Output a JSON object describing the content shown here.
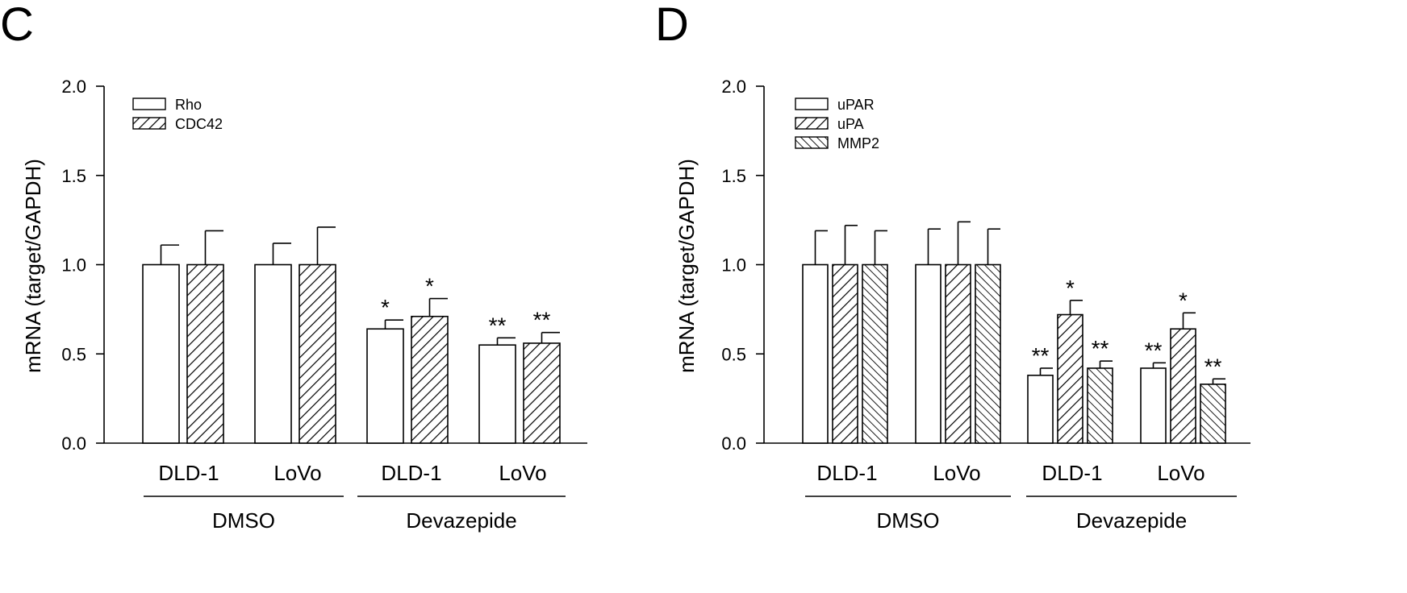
{
  "chart_data": [
    {
      "panel_letter": "C",
      "type": "bar",
      "ylabel": "mRNA (target/GAPDH)",
      "ylim": [
        0,
        2.0
      ],
      "yticks": [
        "0.0",
        "0.5",
        "1.0",
        "1.5",
        "2.0"
      ],
      "categories": [
        "DLD-1",
        "LoVo",
        "DLD-1",
        "LoVo"
      ],
      "groups": [
        {
          "label": "DMSO",
          "categories": [
            0,
            1
          ]
        },
        {
          "label": "Devazepide",
          "categories": [
            2,
            3
          ]
        }
      ],
      "legend_position": "top-left",
      "series": [
        {
          "name": "Rho",
          "pattern": "open",
          "values": [
            1.0,
            1.0,
            0.64,
            0.55
          ],
          "errors": [
            0.11,
            0.12,
            0.05,
            0.04
          ],
          "significance": [
            "",
            "",
            "*",
            "**"
          ]
        },
        {
          "name": "CDC42",
          "pattern": "hatch-forward",
          "values": [
            1.0,
            1.0,
            0.71,
            0.56
          ],
          "errors": [
            0.19,
            0.21,
            0.1,
            0.06
          ],
          "significance": [
            "",
            "",
            "*",
            "**"
          ]
        }
      ]
    },
    {
      "panel_letter": "D",
      "type": "bar",
      "ylabel": "mRNA (target/GAPDH)",
      "ylim": [
        0,
        2.0
      ],
      "yticks": [
        "0.0",
        "0.5",
        "1.0",
        "1.5",
        "2.0"
      ],
      "categories": [
        "DLD-1",
        "LoVo",
        "DLD-1",
        "LoVo"
      ],
      "groups": [
        {
          "label": "DMSO",
          "categories": [
            0,
            1
          ]
        },
        {
          "label": "Devazepide",
          "categories": [
            2,
            3
          ]
        }
      ],
      "legend_position": "top-left",
      "series": [
        {
          "name": "uPAR",
          "pattern": "open",
          "values": [
            1.0,
            1.0,
            0.38,
            0.42
          ],
          "errors": [
            0.19,
            0.2,
            0.04,
            0.03
          ],
          "significance": [
            "",
            "",
            "**",
            "**"
          ]
        },
        {
          "name": "uPA",
          "pattern": "hatch-forward",
          "values": [
            1.0,
            1.0,
            0.72,
            0.64
          ],
          "errors": [
            0.22,
            0.24,
            0.08,
            0.09
          ],
          "significance": [
            "",
            "",
            "*",
            "*"
          ]
        },
        {
          "name": "MMP2",
          "pattern": "hatch-back",
          "values": [
            1.0,
            1.0,
            0.42,
            0.33
          ],
          "errors": [
            0.19,
            0.2,
            0.04,
            0.03
          ],
          "significance": [
            "",
            "",
            "**",
            "**"
          ]
        }
      ]
    }
  ]
}
